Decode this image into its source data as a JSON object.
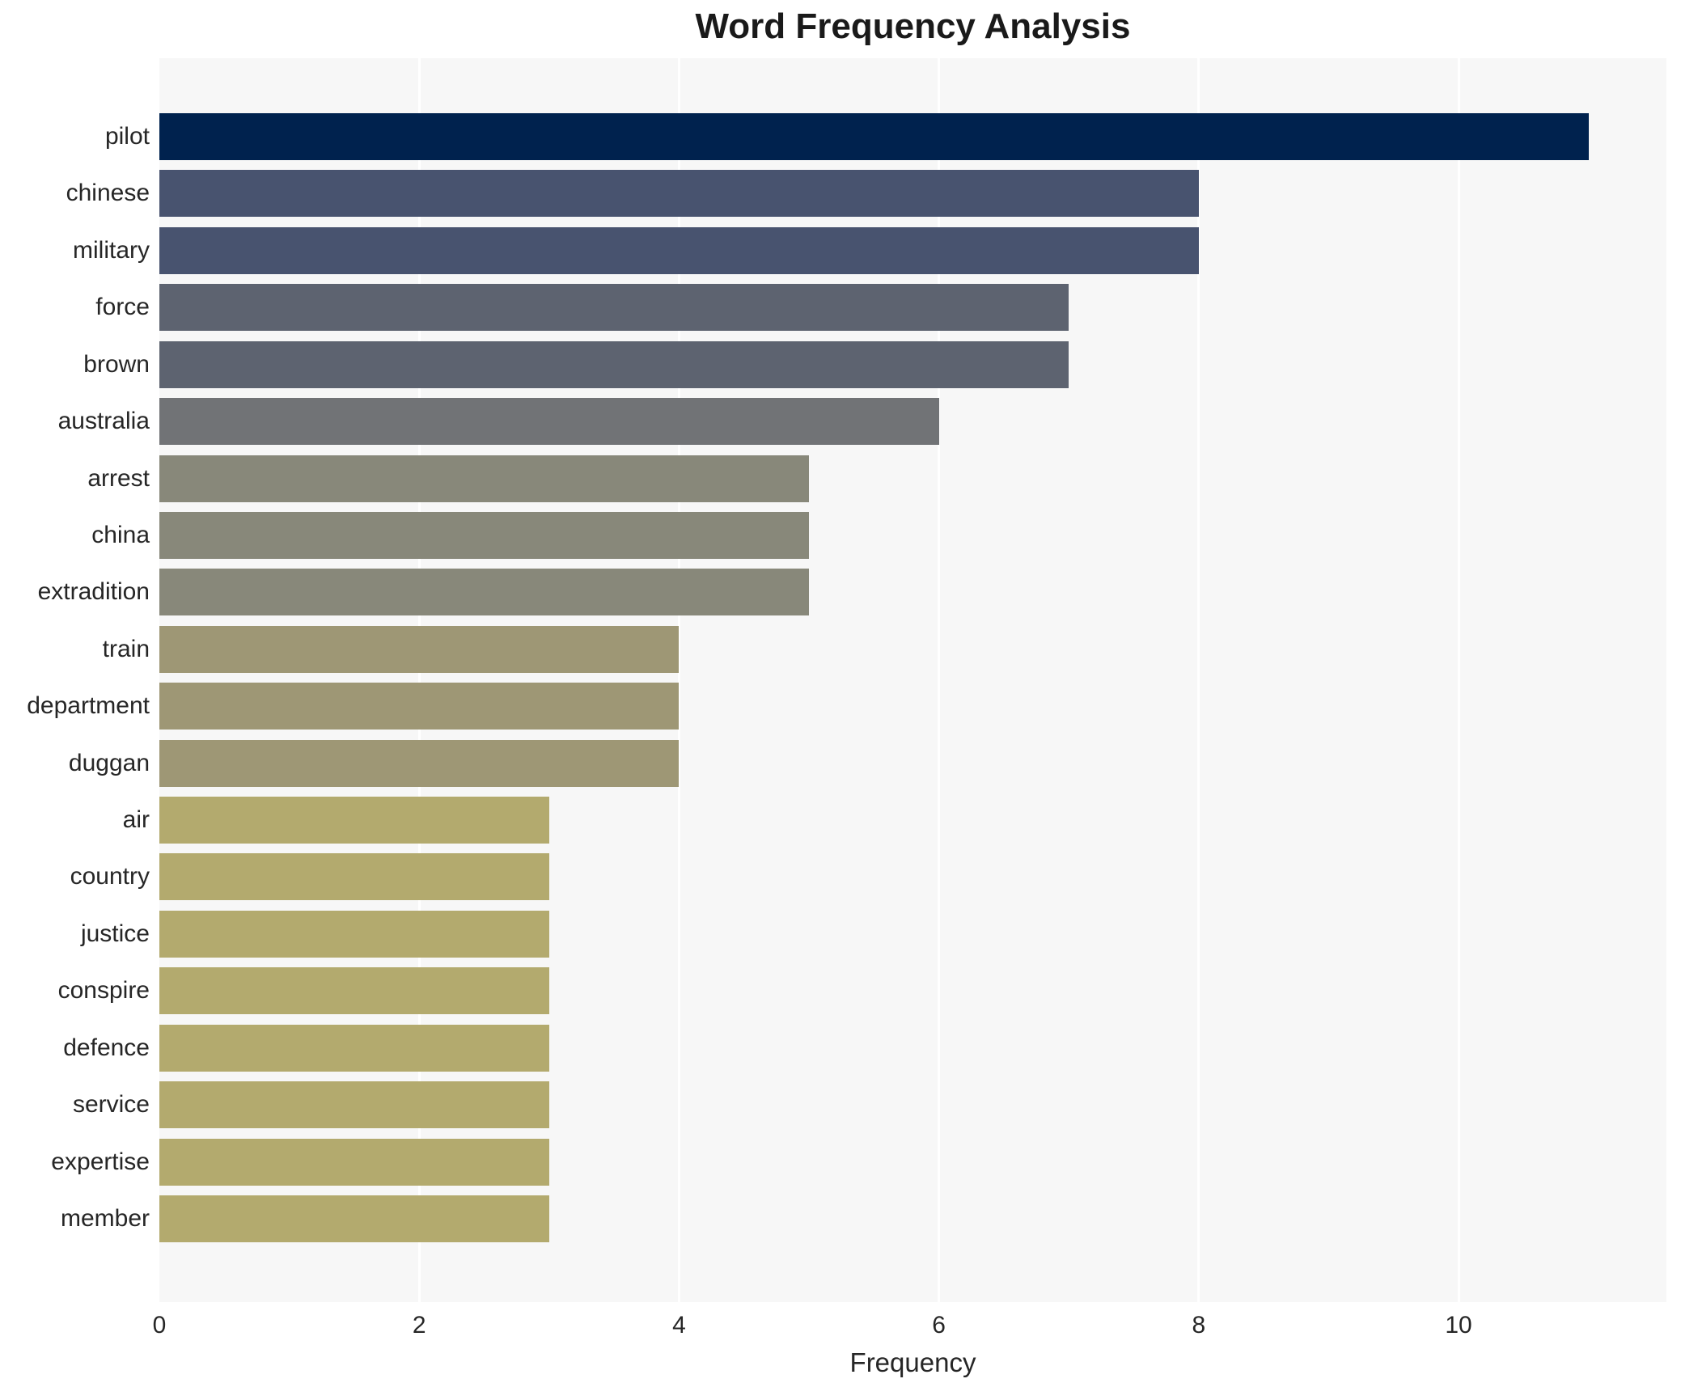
{
  "title": "Word Frequency Analysis",
  "xlabel": "Frequency",
  "colors": {
    "figure_bg": "#ffffff",
    "panel_bg": "#f7f7f7",
    "grid": "#ffffff",
    "text": "#262626"
  },
  "chart_data": {
    "type": "bar",
    "orientation": "horizontal",
    "title": "Word Frequency Analysis",
    "xlabel": "Frequency",
    "ylabel": "",
    "xlim": [
      0,
      11.6
    ],
    "xticks": [
      0,
      2,
      4,
      6,
      8,
      10
    ],
    "grid": "vertical white gridlines at even ticks on light gray panel",
    "legend": "none",
    "categories": [
      "pilot",
      "chinese",
      "military",
      "force",
      "brown",
      "australia",
      "arrest",
      "china",
      "extradition",
      "train",
      "department",
      "duggan",
      "air",
      "country",
      "justice",
      "conspire",
      "defence",
      "service",
      "expertise",
      "member"
    ],
    "values": [
      11,
      8,
      8,
      7,
      7,
      6,
      5,
      5,
      5,
      4,
      4,
      4,
      3,
      3,
      3,
      3,
      3,
      3,
      3,
      3
    ],
    "bar_colors": [
      "#00224e",
      "#48536f",
      "#48536f",
      "#5d6370",
      "#5d6370",
      "#717376",
      "#88887a",
      "#88887a",
      "#88887a",
      "#9e9775",
      "#9e9775",
      "#9e9775",
      "#b3aa6e",
      "#b3aa6e",
      "#b3aa6e",
      "#b3aa6e",
      "#b3aa6e",
      "#b3aa6e",
      "#b3aa6e",
      "#b3aa6e"
    ]
  }
}
